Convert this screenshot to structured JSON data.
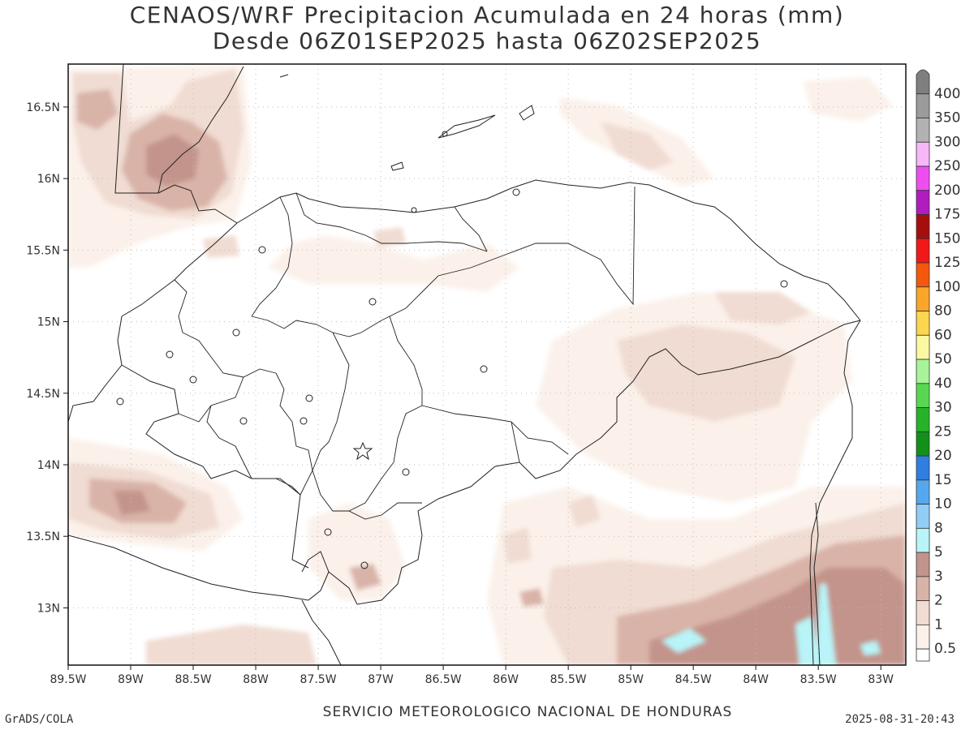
{
  "title": {
    "line1": "CENAOS/WRF Precipitacion Acumulada en 24 horas (mm)",
    "line2": "Desde 06Z01SEP2025 hasta 06Z02SEP2025"
  },
  "map": {
    "x_ticks": [
      "89.5W",
      "89W",
      "88.5W",
      "88W",
      "87.5W",
      "87W",
      "86.5W",
      "86W",
      "85.5W",
      "85W",
      "84.5W",
      "84W",
      "83.5W",
      "83W"
    ],
    "y_ticks": [
      "16.5N",
      "16N",
      "15.5N",
      "15N",
      "14.5N",
      "14N",
      "13.5N",
      "13N"
    ],
    "lon_range": [
      -89.5,
      -82.8
    ],
    "lat_range": [
      12.6,
      16.8
    ]
  },
  "legend": {
    "levels": [
      {
        "label": "400",
        "color": "#7f7f7f"
      },
      {
        "label": "350",
        "color": "#9b9b9b"
      },
      {
        "label": "300",
        "color": "#b2b2b2"
      },
      {
        "label": "250",
        "color": "#f6b8f6"
      },
      {
        "label": "200",
        "color": "#ee4ef0"
      },
      {
        "label": "175",
        "color": "#b01cc0"
      },
      {
        "label": "150",
        "color": "#a60d0d"
      },
      {
        "label": "125",
        "color": "#f01818"
      },
      {
        "label": "100",
        "color": "#f4580c"
      },
      {
        "label": "80",
        "color": "#f9a62a"
      },
      {
        "label": "60",
        "color": "#fbd64e"
      },
      {
        "label": "50",
        "color": "#fbf8a2"
      },
      {
        "label": "40",
        "color": "#a8f49a"
      },
      {
        "label": "30",
        "color": "#58d852"
      },
      {
        "label": "25",
        "color": "#26b328"
      },
      {
        "label": "20",
        "color": "#12901a"
      },
      {
        "label": "15",
        "color": "#2f7ee0"
      },
      {
        "label": "10",
        "color": "#56a8ee"
      },
      {
        "label": "8",
        "color": "#92cdf6"
      },
      {
        "label": "5",
        "color": "#b8f4f8"
      },
      {
        "label": "3",
        "color": "#c3948b"
      },
      {
        "label": "2",
        "color": "#d9b3a8"
      },
      {
        "label": "1",
        "color": "#f0dcd2"
      },
      {
        "label": "0.5",
        "color": "#fbf1ea"
      }
    ]
  },
  "precip_colors": {
    "c05": "#fbf1ea",
    "c1": "#f0dcd2",
    "c2": "#d9b3a8",
    "c3": "#c3948b",
    "c5": "#b8f4f8"
  },
  "footer": {
    "left": "GrADS/COLA",
    "center": "SERVICIO METEOROLOGICO NACIONAL DE HONDURAS",
    "right": "2025-08-31-20:43"
  }
}
